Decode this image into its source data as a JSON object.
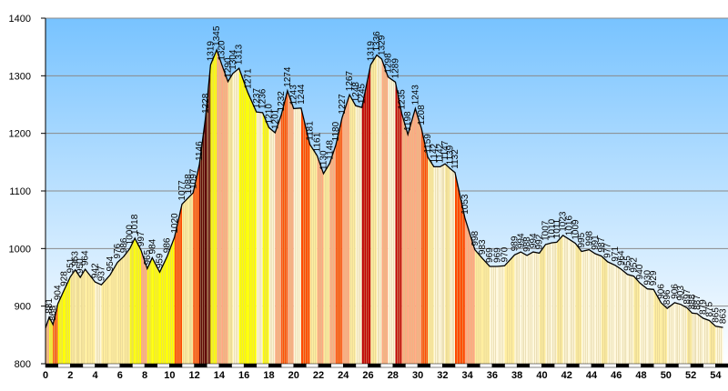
{
  "chart_data": {
    "type": "area",
    "title": "",
    "xlabel": "",
    "ylabel": "",
    "xlim": [
      0,
      55
    ],
    "ylim": [
      800,
      1400
    ],
    "y_ticks": [
      800,
      900,
      1000,
      1100,
      1200,
      1300,
      1400
    ],
    "x_ticks": [
      0,
      2,
      4,
      6,
      8,
      10,
      12,
      14,
      16,
      18,
      20,
      22,
      24,
      26,
      28,
      30,
      32,
      34,
      36,
      38,
      40,
      42,
      44,
      46,
      48,
      50,
      52,
      54
    ],
    "grid": "horizontal",
    "colors": {
      "background_top": "#78c3ff",
      "background_bottom": "#ffffff",
      "grade_0": "#fff8dc",
      "grade_1": "#ffeea0",
      "grade_2": "#ffff00",
      "grade_3": "#ffa880",
      "grade_4": "#ff4a00",
      "grade_5": "#c00000",
      "grade_6": "#5a0000",
      "outline": "#000000"
    },
    "points": [
      {
        "x": 0.0,
        "y": 862,
        "label": ""
      },
      {
        "x": 0.3,
        "y": 881,
        "label": "881"
      },
      {
        "x": 0.6,
        "y": 868,
        "label": "868"
      },
      {
        "x": 1.0,
        "y": 904,
        "label": "904"
      },
      {
        "x": 1.5,
        "y": 928,
        "label": "928"
      },
      {
        "x": 2.0,
        "y": 951,
        "label": "951"
      },
      {
        "x": 2.4,
        "y": 963,
        "label": "963"
      },
      {
        "x": 2.8,
        "y": 950,
        "label": "950"
      },
      {
        "x": 3.2,
        "y": 964,
        "label": "964"
      },
      {
        "x": 4.0,
        "y": 942,
        "label": "942"
      },
      {
        "x": 4.5,
        "y": 937,
        "label": "937"
      },
      {
        "x": 5.2,
        "y": 954,
        "label": "954"
      },
      {
        "x": 5.8,
        "y": 976,
        "label": "976"
      },
      {
        "x": 6.3,
        "y": 986,
        "label": "986"
      },
      {
        "x": 6.8,
        "y": 1000,
        "label": "1000"
      },
      {
        "x": 7.2,
        "y": 1018,
        "label": "1018"
      },
      {
        "x": 7.7,
        "y": 997,
        "label": "997"
      },
      {
        "x": 8.2,
        "y": 965,
        "label": "965"
      },
      {
        "x": 8.6,
        "y": 984,
        "label": "984"
      },
      {
        "x": 9.2,
        "y": 959,
        "label": "959"
      },
      {
        "x": 9.8,
        "y": 986,
        "label": "986"
      },
      {
        "x": 10.4,
        "y": 1020,
        "label": "1020"
      },
      {
        "x": 11.0,
        "y": 1077,
        "label": "1077"
      },
      {
        "x": 11.5,
        "y": 1088,
        "label": "1088"
      },
      {
        "x": 11.9,
        "y": 1097,
        "label": "1097"
      },
      {
        "x": 12.4,
        "y": 1146,
        "label": "1146"
      },
      {
        "x": 12.9,
        "y": 1228,
        "label": "1228"
      },
      {
        "x": 13.3,
        "y": 1319,
        "label": "1319"
      },
      {
        "x": 13.8,
        "y": 1345,
        "label": "1345"
      },
      {
        "x": 14.2,
        "y": 1320,
        "label": "1320"
      },
      {
        "x": 14.7,
        "y": 1290,
        "label": "1290"
      },
      {
        "x": 15.1,
        "y": 1304,
        "label": "1304"
      },
      {
        "x": 15.6,
        "y": 1313,
        "label": "1313"
      },
      {
        "x": 16.3,
        "y": 1271,
        "label": "1271"
      },
      {
        "x": 17.0,
        "y": 1237,
        "label": "1237"
      },
      {
        "x": 17.5,
        "y": 1236,
        "label": "1236"
      },
      {
        "x": 18.0,
        "y": 1210,
        "label": "1210"
      },
      {
        "x": 18.5,
        "y": 1201,
        "label": "1201"
      },
      {
        "x": 19.0,
        "y": 1232,
        "label": "1232"
      },
      {
        "x": 19.5,
        "y": 1274,
        "label": "1274"
      },
      {
        "x": 20.0,
        "y": 1243,
        "label": "1243"
      },
      {
        "x": 20.6,
        "y": 1244,
        "label": "1244"
      },
      {
        "x": 21.3,
        "y": 1181,
        "label": "1181"
      },
      {
        "x": 21.9,
        "y": 1161,
        "label": "1161"
      },
      {
        "x": 22.4,
        "y": 1130,
        "label": "1130"
      },
      {
        "x": 22.9,
        "y": 1148,
        "label": "1148"
      },
      {
        "x": 23.4,
        "y": 1180,
        "label": "1180"
      },
      {
        "x": 23.9,
        "y": 1227,
        "label": "1227"
      },
      {
        "x": 24.5,
        "y": 1267,
        "label": "1267"
      },
      {
        "x": 25.0,
        "y": 1248,
        "label": "1248"
      },
      {
        "x": 25.5,
        "y": 1245,
        "label": "1245"
      },
      {
        "x": 26.2,
        "y": 1319,
        "label": "1319"
      },
      {
        "x": 26.7,
        "y": 1336,
        "label": "1336"
      },
      {
        "x": 27.1,
        "y": 1329,
        "label": "1329"
      },
      {
        "x": 27.6,
        "y": 1298,
        "label": "1298"
      },
      {
        "x": 28.2,
        "y": 1289,
        "label": "1289"
      },
      {
        "x": 28.7,
        "y": 1235,
        "label": "1235"
      },
      {
        "x": 29.2,
        "y": 1198,
        "label": "1198"
      },
      {
        "x": 29.8,
        "y": 1243,
        "label": "1243"
      },
      {
        "x": 30.3,
        "y": 1208,
        "label": "1208"
      },
      {
        "x": 30.8,
        "y": 1159,
        "label": "1159"
      },
      {
        "x": 31.3,
        "y": 1142,
        "label": "1142"
      },
      {
        "x": 31.8,
        "y": 1142,
        "label": "1142"
      },
      {
        "x": 32.2,
        "y": 1147,
        "label": "1147"
      },
      {
        "x": 32.6,
        "y": 1139,
        "label": "1139"
      },
      {
        "x": 33.0,
        "y": 1132,
        "label": "1132"
      },
      {
        "x": 33.8,
        "y": 1053,
        "label": "1053"
      },
      {
        "x": 34.6,
        "y": 998,
        "label": "998"
      },
      {
        "x": 35.2,
        "y": 983,
        "label": "983"
      },
      {
        "x": 35.8,
        "y": 969,
        "label": "969"
      },
      {
        "x": 36.4,
        "y": 969,
        "label": "969"
      },
      {
        "x": 37.0,
        "y": 970,
        "label": "970"
      },
      {
        "x": 37.8,
        "y": 989,
        "label": "989"
      },
      {
        "x": 38.3,
        "y": 994,
        "label": "994"
      },
      {
        "x": 38.8,
        "y": 988,
        "label": "988"
      },
      {
        "x": 39.3,
        "y": 994,
        "label": "994"
      },
      {
        "x": 39.8,
        "y": 992,
        "label": "992"
      },
      {
        "x": 40.3,
        "y": 1007,
        "label": "1007"
      },
      {
        "x": 40.8,
        "y": 1010,
        "label": "1010"
      },
      {
        "x": 41.2,
        "y": 1011,
        "label": "1011"
      },
      {
        "x": 41.7,
        "y": 1023,
        "label": "1023"
      },
      {
        "x": 42.2,
        "y": 1016,
        "label": "1016"
      },
      {
        "x": 42.7,
        "y": 1009,
        "label": "1009"
      },
      {
        "x": 43.2,
        "y": 995,
        "label": "995"
      },
      {
        "x": 43.8,
        "y": 998,
        "label": "998"
      },
      {
        "x": 44.3,
        "y": 991,
        "label": "991"
      },
      {
        "x": 44.8,
        "y": 987,
        "label": "987"
      },
      {
        "x": 45.3,
        "y": 977,
        "label": "977"
      },
      {
        "x": 45.9,
        "y": 971,
        "label": "971"
      },
      {
        "x": 46.4,
        "y": 964,
        "label": "964"
      },
      {
        "x": 46.9,
        "y": 955,
        "label": "955"
      },
      {
        "x": 47.4,
        "y": 952,
        "label": "952"
      },
      {
        "x": 47.9,
        "y": 940,
        "label": "940"
      },
      {
        "x": 48.5,
        "y": 930,
        "label": "930"
      },
      {
        "x": 49.0,
        "y": 929,
        "label": "929"
      },
      {
        "x": 49.6,
        "y": 906,
        "label": "906"
      },
      {
        "x": 50.1,
        "y": 896,
        "label": "896"
      },
      {
        "x": 50.7,
        "y": 906,
        "label": "906"
      },
      {
        "x": 51.2,
        "y": 903,
        "label": "903"
      },
      {
        "x": 51.7,
        "y": 897,
        "label": "897"
      },
      {
        "x": 52.1,
        "y": 888,
        "label": "888"
      },
      {
        "x": 52.5,
        "y": 887,
        "label": "887"
      },
      {
        "x": 53.0,
        "y": 879,
        "label": "879"
      },
      {
        "x": 53.5,
        "y": 875,
        "label": "875"
      },
      {
        "x": 54.0,
        "y": 865,
        "label": "865"
      },
      {
        "x": 54.6,
        "y": 863,
        "label": "863"
      }
    ]
  }
}
